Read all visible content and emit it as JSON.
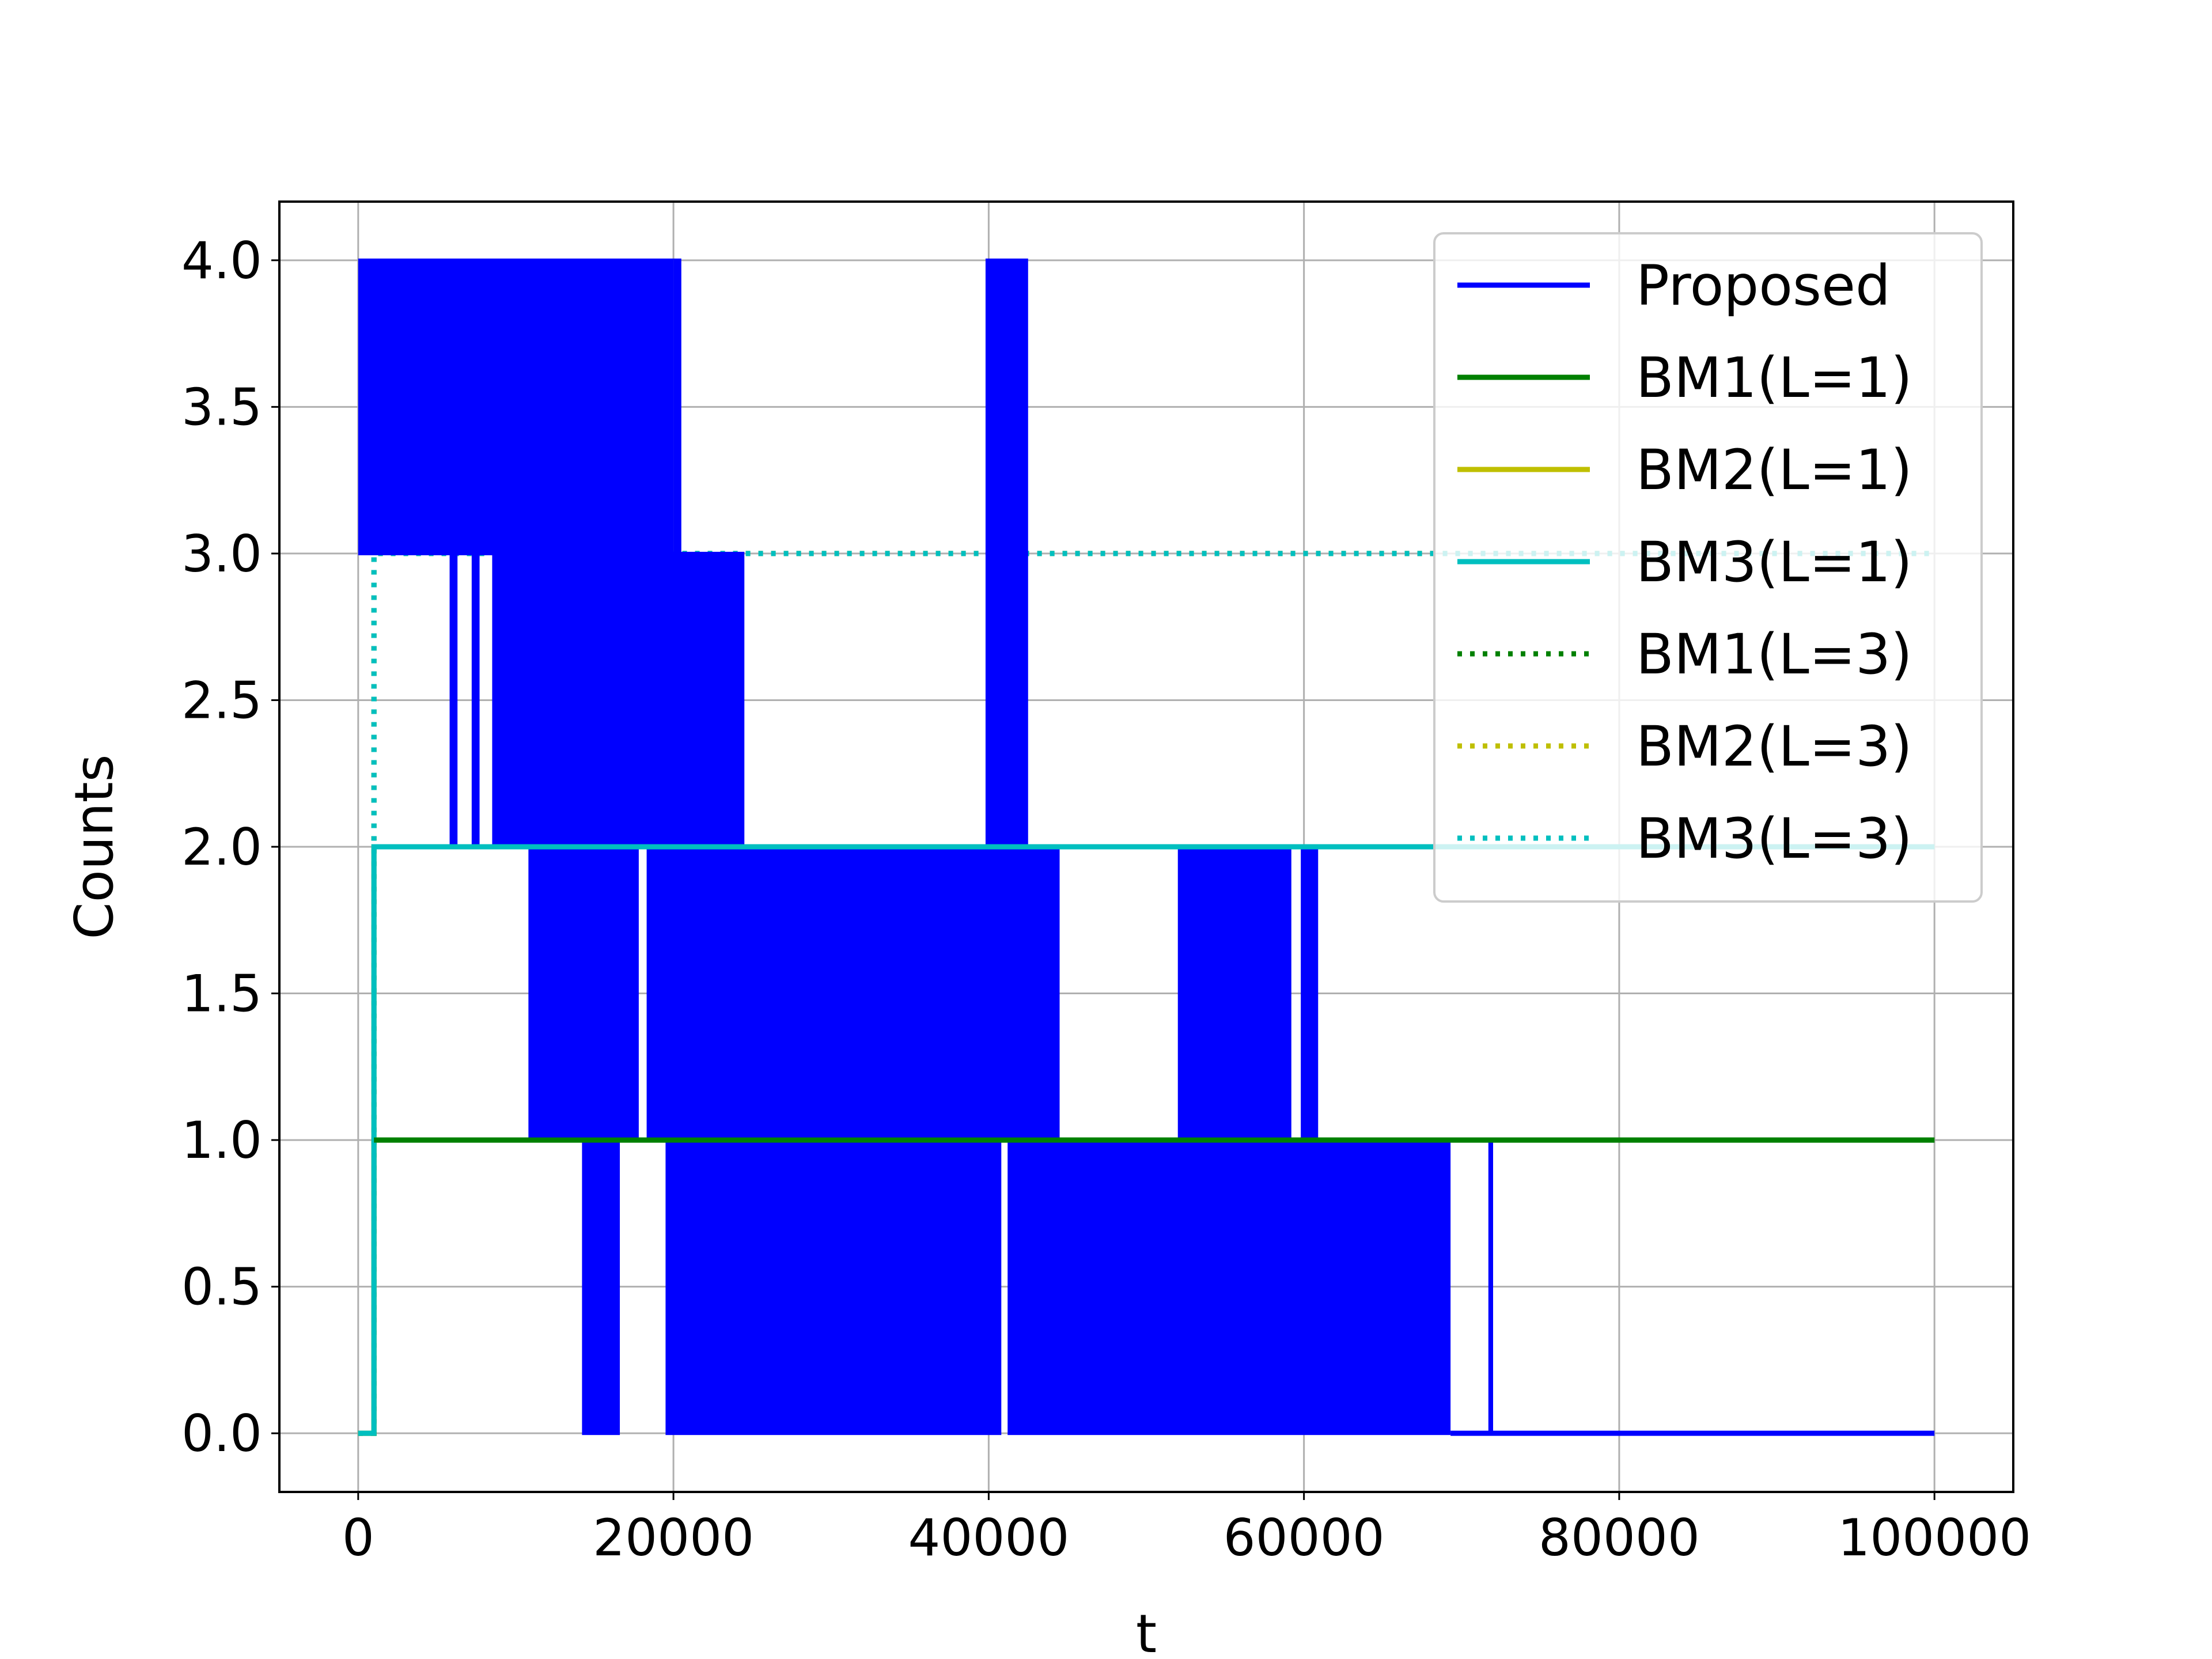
{
  "chart_data": {
    "type": "line",
    "title": "",
    "xlabel": "t",
    "ylabel": "Counts",
    "xlim": [
      -5000,
      105000
    ],
    "ylim": [
      -0.2,
      4.2
    ],
    "xticks": [
      0,
      20000,
      40000,
      60000,
      80000,
      100000
    ],
    "xtick_labels": [
      "0",
      "20000",
      "40000",
      "60000",
      "80000",
      "100000"
    ],
    "yticks": [
      0.0,
      0.5,
      1.0,
      1.5,
      2.0,
      2.5,
      3.0,
      3.5,
      4.0
    ],
    "ytick_labels": [
      "0.0",
      "0.5",
      "1.0",
      "1.5",
      "2.0",
      "2.5",
      "3.0",
      "3.5",
      "4.0"
    ],
    "grid": true,
    "legend_position": "top-right",
    "series": [
      {
        "name": "Proposed",
        "color": "#0000ff",
        "style": "solid",
        "oscillation_bands": [
          {
            "x_start": 0,
            "x_end": 20000,
            "low": 3,
            "high": 4
          },
          {
            "x_start": 20000,
            "x_end": 20500,
            "low": 3,
            "high": 4
          },
          {
            "x_start": 5800,
            "x_end": 6300,
            "low": 2,
            "high": 3
          },
          {
            "x_start": 7200,
            "x_end": 7700,
            "low": 2,
            "high": 3
          },
          {
            "x_start": 8500,
            "x_end": 24500,
            "low": 2,
            "high": 3
          },
          {
            "x_start": 39800,
            "x_end": 42500,
            "low": 3,
            "high": 4
          },
          {
            "x_start": 39800,
            "x_end": 42500,
            "low": 2,
            "high": 3
          },
          {
            "x_start": 10800,
            "x_end": 17800,
            "low": 1,
            "high": 2
          },
          {
            "x_start": 18300,
            "x_end": 44500,
            "low": 1,
            "high": 2
          },
          {
            "x_start": 52000,
            "x_end": 59200,
            "low": 1,
            "high": 2
          },
          {
            "x_start": 59800,
            "x_end": 60900,
            "low": 1,
            "high": 2
          },
          {
            "x_start": 14200,
            "x_end": 16600,
            "low": 0,
            "high": 1
          },
          {
            "x_start": 19500,
            "x_end": 40800,
            "low": 0,
            "high": 1
          },
          {
            "x_start": 41200,
            "x_end": 69300,
            "low": 0,
            "high": 1
          },
          {
            "x_start": 71700,
            "x_end": 72000,
            "low": 0,
            "high": 1
          }
        ],
        "tail": {
          "x_start": 69300,
          "x_end": 100000,
          "value": 0
        }
      },
      {
        "name": "BM1(L=1)",
        "color": "#008000",
        "style": "solid",
        "x": [
          0,
          1000,
          1000,
          100000
        ],
        "y": [
          0,
          0,
          1,
          1
        ]
      },
      {
        "name": "BM2(L=1)",
        "color": "#bfbf00",
        "style": "solid",
        "x": [
          0,
          1000,
          1000,
          100000
        ],
        "y": [
          0,
          0,
          2,
          2
        ]
      },
      {
        "name": "BM3(L=1)",
        "color": "#00bfbf",
        "style": "solid",
        "x": [
          0,
          1000,
          1000,
          100000
        ],
        "y": [
          0,
          0,
          2,
          2
        ]
      },
      {
        "name": "BM1(L=3)",
        "color": "#008000",
        "style": "dotted",
        "x": [
          0,
          1000,
          1000,
          100000
        ],
        "y": [
          0,
          0,
          3,
          3
        ]
      },
      {
        "name": "BM2(L=3)",
        "color": "#bfbf00",
        "style": "dotted",
        "x": [
          0,
          1000,
          1000,
          100000
        ],
        "y": [
          0,
          0,
          3,
          3
        ]
      },
      {
        "name": "BM3(L=3)",
        "color": "#00bfbf",
        "style": "dotted",
        "x": [
          0,
          1000,
          1000,
          100000
        ],
        "y": [
          0,
          0,
          3,
          3
        ]
      }
    ]
  }
}
